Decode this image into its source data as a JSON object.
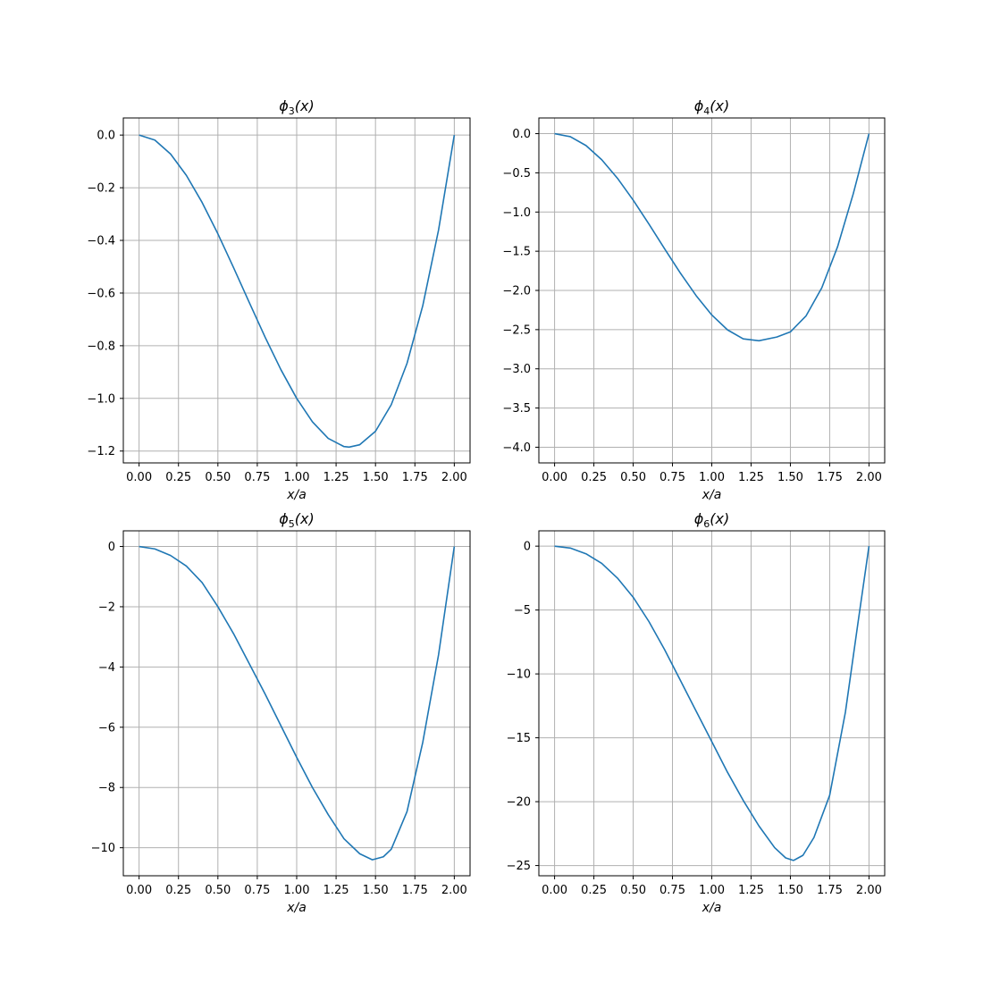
{
  "chart_data": [
    {
      "type": "line",
      "title": {
        "pre": "ϕ",
        "sub": "3",
        "post": "(x)"
      },
      "xlabel": "x/a",
      "xlim": [
        -0.1,
        2.1
      ],
      "ylim": [
        -1.245,
        0.065
      ],
      "xticks": [
        0,
        0.25,
        0.5,
        0.75,
        1.0,
        1.25,
        1.5,
        1.75,
        2.0
      ],
      "xtick_labels": [
        "0.00",
        "0.25",
        "0.50",
        "0.75",
        "1.00",
        "1.25",
        "1.50",
        "1.75",
        "2.00"
      ],
      "yticks": [
        0.0,
        -0.2,
        -0.4,
        -0.6,
        -0.8,
        -1.0,
        -1.2
      ],
      "ytick_labels": [
        "0.0",
        "−0.2",
        "−0.4",
        "−0.6",
        "−0.8",
        "−1.0",
        "−1.2"
      ],
      "grid": true,
      "color": "#1f77b4",
      "series": [
        {
          "x": [
            0,
            0.1,
            0.2,
            0.3,
            0.4,
            0.5,
            0.6,
            0.7,
            0.8,
            0.9,
            1.0,
            1.1,
            1.2,
            1.3,
            1.333,
            1.4,
            1.5,
            1.6,
            1.7,
            1.8,
            1.9,
            2.0
          ],
          "y": [
            0,
            -0.019,
            -0.072,
            -0.153,
            -0.256,
            -0.375,
            -0.504,
            -0.637,
            -0.768,
            -0.891,
            -1.0,
            -1.089,
            -1.152,
            -1.183,
            -1.185,
            -1.176,
            -1.125,
            -1.024,
            -0.867,
            -0.648,
            -0.361,
            0.0
          ]
        }
      ]
    },
    {
      "type": "line",
      "title": {
        "pre": "ϕ",
        "sub": "4",
        "post": "(x)"
      },
      "xlabel": "x/a",
      "xlim": [
        -0.1,
        2.1
      ],
      "ylim": [
        -4.2,
        0.2
      ],
      "xticks": [
        0,
        0.25,
        0.5,
        0.75,
        1.0,
        1.25,
        1.5,
        1.75,
        2.0
      ],
      "xtick_labels": [
        "0.00",
        "0.25",
        "0.50",
        "0.75",
        "1.00",
        "1.25",
        "1.50",
        "1.75",
        "2.00"
      ],
      "yticks": [
        0.0,
        -0.5,
        -1.0,
        -1.5,
        -2.0,
        -2.5,
        -3.0,
        -3.5,
        -4.0
      ],
      "ytick_labels": [
        "0.0",
        "−0.5",
        "−1.0",
        "−1.5",
        "−2.0",
        "−2.5",
        "−3.0",
        "−3.5",
        "−4.0"
      ],
      "grid": true,
      "color": "#1f77b4",
      "series": [
        {
          "x": [
            0,
            0.1,
            0.2,
            0.3,
            0.4,
            0.5,
            0.6,
            0.7,
            0.8,
            0.9,
            1.0,
            1.1,
            1.2,
            1.3,
            1.414,
            1.5,
            1.6,
            1.7,
            1.8,
            1.9,
            2.0
          ],
          "y": [
            0,
            -0.039,
            -0.152,
            -0.333,
            -0.569,
            -0.848,
            -1.153,
            -1.469,
            -1.778,
            -2.065,
            -2.313,
            -2.503,
            -2.618,
            -2.642,
            -2.594,
            -2.529,
            -2.324,
            -1.966,
            -1.444,
            -0.767,
            0.0
          ]
        }
      ]
    },
    {
      "type": "line",
      "title": {
        "pre": "ϕ",
        "sub": "5",
        "post": "(x)"
      },
      "xlabel": "x/a",
      "xlim": [
        -0.1,
        2.1
      ],
      "ylim": [
        -10.93,
        0.52
      ],
      "xticks": [
        0,
        0.25,
        0.5,
        0.75,
        1.0,
        1.25,
        1.5,
        1.75,
        2.0
      ],
      "xtick_labels": [
        "0.00",
        "0.25",
        "0.50",
        "0.75",
        "1.00",
        "1.25",
        "1.50",
        "1.75",
        "2.00"
      ],
      "yticks": [
        0,
        -2,
        -4,
        -6,
        -8,
        -10
      ],
      "ytick_labels": [
        "0",
        "−2",
        "−4",
        "−6",
        "−8",
        "−10"
      ],
      "grid": true,
      "color": "#1f77b4",
      "series": [
        {
          "x": [
            0,
            0.1,
            0.2,
            0.3,
            0.4,
            0.5,
            0.6,
            0.7,
            0.8,
            0.9,
            1.0,
            1.1,
            1.2,
            1.3,
            1.4,
            1.48,
            1.55,
            1.6,
            1.7,
            1.8,
            1.9,
            2.0
          ],
          "y": [
            0,
            -0.08,
            -0.3,
            -0.65,
            -1.2,
            -2.0,
            -2.9,
            -3.9,
            -4.9,
            -5.95,
            -7.0,
            -8.0,
            -8.9,
            -9.7,
            -10.2,
            -10.4,
            -10.3,
            -10.05,
            -8.8,
            -6.5,
            -3.6,
            0.0
          ]
        }
      ]
    },
    {
      "type": "line",
      "title": {
        "pre": "ϕ",
        "sub": "6",
        "post": "(x)"
      },
      "xlabel": "x/a",
      "xlim": [
        -0.1,
        2.1
      ],
      "ylim": [
        -25.8,
        1.2
      ],
      "xticks": [
        0,
        0.25,
        0.5,
        0.75,
        1.0,
        1.25,
        1.5,
        1.75,
        2.0
      ],
      "xtick_labels": [
        "0.00",
        "0.25",
        "0.50",
        "0.75",
        "1.00",
        "1.25",
        "1.50",
        "1.75",
        "2.00"
      ],
      "yticks": [
        0,
        -5,
        -10,
        -15,
        -20,
        -25
      ],
      "ytick_labels": [
        "0",
        "−5",
        "−10",
        "−15",
        "−20",
        "−25"
      ],
      "grid": true,
      "color": "#1f77b4",
      "series": [
        {
          "x": [
            0,
            0.1,
            0.2,
            0.3,
            0.4,
            0.5,
            0.6,
            0.7,
            0.8,
            0.9,
            1.0,
            1.1,
            1.2,
            1.3,
            1.4,
            1.47,
            1.52,
            1.58,
            1.65,
            1.75,
            1.85,
            1.93,
            2.0
          ],
          "y": [
            0,
            -0.15,
            -0.6,
            -1.35,
            -2.5,
            -4.0,
            -5.9,
            -8.1,
            -10.5,
            -12.9,
            -15.3,
            -17.7,
            -19.9,
            -21.9,
            -23.6,
            -24.4,
            -24.6,
            -24.2,
            -22.8,
            -19.5,
            -13.0,
            -6.0,
            0.0
          ]
        }
      ]
    }
  ]
}
